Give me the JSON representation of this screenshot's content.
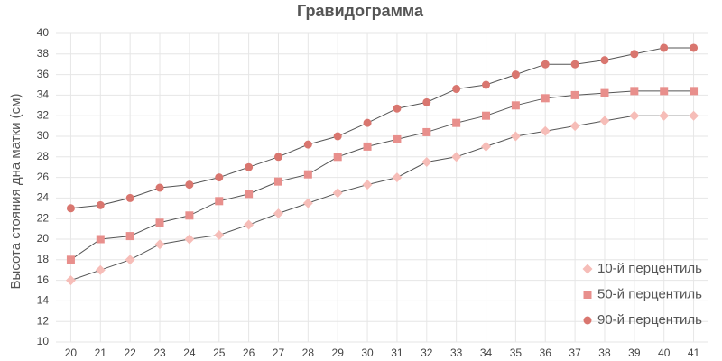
{
  "chart_data": {
    "type": "line",
    "title": "Гравидограмма",
    "y_label": "Высота стояния дна матки (см)",
    "x": [
      20,
      21,
      22,
      23,
      24,
      25,
      26,
      27,
      28,
      29,
      30,
      31,
      32,
      33,
      34,
      35,
      36,
      37,
      38,
      39,
      40,
      41
    ],
    "xlim": [
      19.5,
      41.5
    ],
    "xticks": [
      20,
      21,
      22,
      23,
      24,
      25,
      26,
      27,
      28,
      29,
      30,
      31,
      32,
      33,
      34,
      35,
      36,
      37,
      38,
      39,
      40,
      41
    ],
    "ylim": [
      10,
      40
    ],
    "yticks": [
      10,
      12,
      14,
      16,
      18,
      20,
      22,
      24,
      26,
      28,
      30,
      32,
      34,
      36,
      38,
      40
    ],
    "grid": true,
    "legend": "bottom-right",
    "line_color": "#555555",
    "series": [
      {
        "name": "10-й перцентиль",
        "color": "#f6bdb8",
        "marker": "diamond",
        "values": [
          16,
          17,
          18,
          19.5,
          20,
          20.4,
          21.4,
          22.5,
          23.5,
          24.5,
          25.3,
          26,
          27.5,
          28,
          29,
          30,
          30.5,
          31,
          31.5,
          32,
          32,
          32
        ]
      },
      {
        "name": "50-й перцентиль",
        "color": "#e88f8c",
        "marker": "square",
        "values": [
          18,
          20,
          20.3,
          21.6,
          22.3,
          23.7,
          24.4,
          25.6,
          26.3,
          28,
          29,
          29.7,
          30.4,
          31.3,
          32,
          33,
          33.7,
          34,
          34.2,
          34.4,
          34.4,
          34.4
        ]
      },
      {
        "name": "90-й перцентиль",
        "color": "#d9766f",
        "marker": "circle",
        "values": [
          23,
          23.3,
          24,
          25,
          25.3,
          26,
          27,
          28,
          29.2,
          30,
          31.3,
          32.7,
          33.3,
          34.6,
          35,
          36,
          37,
          37,
          37.4,
          38,
          38.6,
          38.6
        ]
      }
    ]
  }
}
